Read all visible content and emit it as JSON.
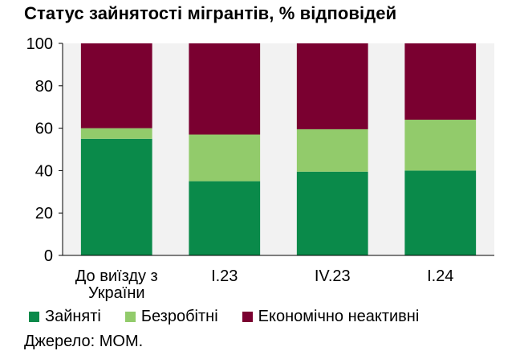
{
  "chart_data": {
    "type": "bar",
    "stacked": true,
    "title": "Статус зайнятості мігрантів, % відповідей",
    "categories": [
      "До виїзду з України",
      "I.23",
      "IV.23",
      "I.24"
    ],
    "series": [
      {
        "name": "Зайняті",
        "color": "#0a8a4a",
        "values": [
          55,
          35,
          39.5,
          40
        ]
      },
      {
        "name": "Безробітні",
        "color": "#92cb6b",
        "values": [
          5,
          22,
          20,
          24
        ]
      },
      {
        "name": "Економічно неактивні",
        "color": "#7a0030",
        "values": [
          40,
          43,
          40.5,
          36
        ]
      }
    ],
    "ylim": [
      0,
      100
    ],
    "yticks": [
      0,
      20,
      40,
      60,
      80,
      100
    ],
    "grid": false,
    "legend_position": "bottom",
    "plot_background": "#ffffff",
    "band_color": "#f2f2f2"
  },
  "source": "Джерело: МОМ."
}
